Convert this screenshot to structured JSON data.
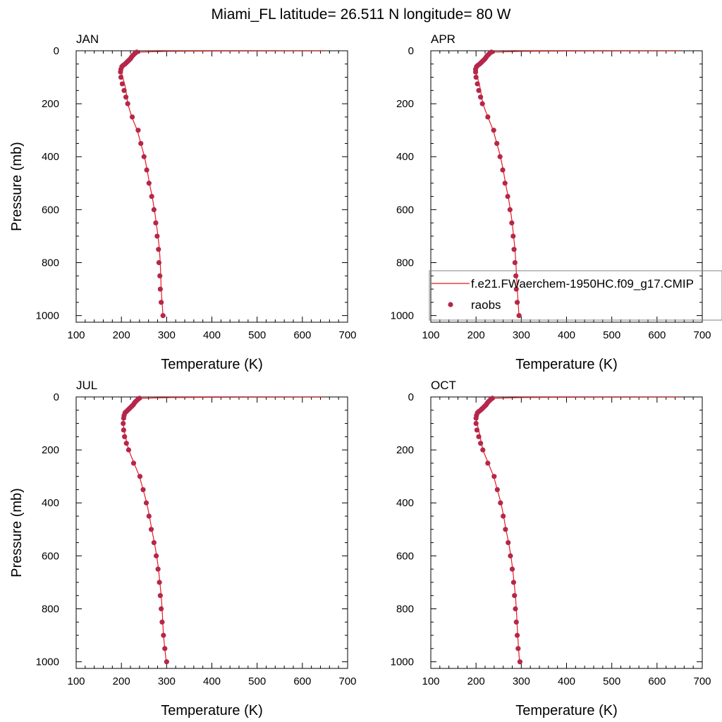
{
  "page": {
    "title": "Miami_FL  latitude= 26.511 N longitude= 80 W"
  },
  "legend": {
    "model_label": "f.e21.FWaerchem-1950HC.f09_g17.CMIP",
    "obs_label": "raobs",
    "placement": "inside APR panel, lower area",
    "model_color": "#e8191e",
    "obs_color": "#b5274a"
  },
  "chart_data": [
    {
      "type": "line",
      "panel_label": "JAN",
      "xlabel": "Temperature (K)",
      "ylabel": "Pressure (mb)",
      "xlim": [
        100,
        700
      ],
      "ylim": [
        1025,
        0
      ],
      "y_reversed": true,
      "xticks": [
        100,
        200,
        300,
        400,
        500,
        600,
        700
      ],
      "yticks": [
        0,
        200,
        400,
        600,
        800,
        1000
      ],
      "series": [
        {
          "name": "f.e21.FWaerchem-1950HC.f09_g17.CMIP",
          "kind": "line",
          "x": [
            650,
            400,
            300,
            240,
            232,
            226,
            222,
            218,
            213,
            208,
            203,
            200,
            200,
            203,
            207,
            210,
            214,
            223,
            235,
            243,
            251,
            257,
            262,
            268,
            273,
            277,
            281,
            284,
            286,
            288,
            292
          ],
          "y": [
            0.5,
            1,
            2,
            5,
            10,
            15,
            20,
            30,
            40,
            50,
            60,
            70,
            80,
            100,
            125,
            150,
            200,
            250,
            300,
            350,
            400,
            450,
            500,
            550,
            600,
            650,
            700,
            750,
            800,
            900,
            1000
          ]
        },
        {
          "name": "raobs",
          "kind": "scatter",
          "x": [
            234,
            230,
            227,
            224,
            222,
            220,
            217,
            214,
            211,
            208,
            204,
            201,
            199,
            198,
            199,
            202,
            206,
            210,
            214,
            224,
            237,
            243,
            250,
            256,
            261,
            267,
            272,
            276,
            279,
            282,
            283,
            285,
            286,
            288,
            292
          ],
          "y": [
            5,
            10,
            15,
            20,
            25,
            30,
            35,
            40,
            45,
            50,
            55,
            60,
            70,
            80,
            100,
            125,
            150,
            175,
            200,
            250,
            300,
            350,
            400,
            450,
            500,
            550,
            600,
            650,
            700,
            750,
            800,
            850,
            900,
            950,
            1000
          ]
        }
      ]
    },
    {
      "type": "line",
      "panel_label": "APR",
      "xlabel": "Temperature (K)",
      "ylabel": "",
      "xlim": [
        100,
        700
      ],
      "ylim": [
        1025,
        0
      ],
      "y_reversed": true,
      "xticks": [
        100,
        200,
        300,
        400,
        500,
        600,
        700
      ],
      "yticks": [
        0,
        200,
        400,
        600,
        800,
        1000
      ],
      "series": [
        {
          "name": "f.e21.FWaerchem-1950HC.f09_g17.CMIP",
          "kind": "line",
          "x": [
            650,
            400,
            300,
            240,
            232,
            226,
            222,
            218,
            213,
            208,
            203,
            200,
            200,
            203,
            207,
            210,
            215,
            226,
            238,
            246,
            254,
            260,
            265,
            271,
            276,
            280,
            283,
            286,
            288,
            291,
            295
          ],
          "y": [
            0.5,
            1,
            2,
            5,
            10,
            15,
            20,
            30,
            40,
            50,
            60,
            70,
            80,
            100,
            125,
            150,
            200,
            250,
            300,
            350,
            400,
            450,
            500,
            550,
            600,
            650,
            700,
            750,
            800,
            900,
            1000
          ]
        },
        {
          "name": "raobs",
          "kind": "scatter",
          "x": [
            234,
            230,
            227,
            224,
            222,
            220,
            217,
            214,
            211,
            208,
            204,
            201,
            199,
            199,
            200,
            203,
            206,
            210,
            214,
            226,
            239,
            246,
            253,
            259,
            264,
            270,
            275,
            279,
            282,
            284,
            286,
            288,
            289,
            291,
            295
          ],
          "y": [
            5,
            10,
            15,
            20,
            25,
            30,
            35,
            40,
            45,
            50,
            55,
            60,
            70,
            80,
            100,
            125,
            150,
            175,
            200,
            250,
            300,
            350,
            400,
            450,
            500,
            550,
            600,
            650,
            700,
            750,
            800,
            850,
            900,
            950,
            1000
          ]
        }
      ]
    },
    {
      "type": "line",
      "panel_label": "JUL",
      "xlabel": "Temperature (K)",
      "ylabel": "Pressure (mb)",
      "xlim": [
        100,
        700
      ],
      "ylim": [
        1025,
        0
      ],
      "y_reversed": true,
      "xticks": [
        100,
        200,
        300,
        400,
        500,
        600,
        700
      ],
      "yticks": [
        0,
        200,
        400,
        600,
        800,
        1000
      ],
      "series": [
        {
          "name": "f.e21.FWaerchem-1950HC.f09_g17.CMIP",
          "kind": "line",
          "x": [
            650,
            420,
            310,
            242,
            235,
            230,
            226,
            222,
            218,
            214,
            210,
            207,
            205,
            204,
            206,
            209,
            216,
            228,
            240,
            248,
            256,
            262,
            267,
            273,
            278,
            282,
            285,
            288,
            290,
            293,
            299
          ],
          "y": [
            0.5,
            1,
            2,
            5,
            10,
            15,
            20,
            30,
            40,
            50,
            60,
            70,
            80,
            100,
            125,
            150,
            200,
            250,
            300,
            350,
            400,
            450,
            500,
            550,
            600,
            650,
            700,
            750,
            800,
            900,
            1000
          ]
        },
        {
          "name": "raobs",
          "kind": "scatter",
          "x": [
            240,
            236,
            233,
            230,
            228,
            226,
            223,
            220,
            217,
            214,
            211,
            208,
            206,
            205,
            204,
            205,
            207,
            211,
            216,
            227,
            241,
            248,
            255,
            261,
            266,
            272,
            277,
            281,
            284,
            286,
            288,
            290,
            293,
            296,
            300
          ],
          "y": [
            5,
            10,
            15,
            20,
            25,
            30,
            35,
            40,
            45,
            50,
            55,
            60,
            70,
            80,
            100,
            125,
            150,
            175,
            200,
            250,
            300,
            350,
            400,
            450,
            500,
            550,
            600,
            650,
            700,
            750,
            800,
            850,
            900,
            950,
            1000
          ]
        }
      ]
    },
    {
      "type": "line",
      "panel_label": "OCT",
      "xlabel": "Temperature (K)",
      "ylabel": "",
      "xlim": [
        100,
        700
      ],
      "ylim": [
        1025,
        0
      ],
      "y_reversed": true,
      "xticks": [
        100,
        200,
        300,
        400,
        500,
        600,
        700
      ],
      "yticks": [
        0,
        200,
        400,
        600,
        800,
        1000
      ],
      "series": [
        {
          "name": "f.e21.FWaerchem-1950HC.f09_g17.CMIP",
          "kind": "line",
          "x": [
            650,
            400,
            300,
            238,
            232,
            227,
            223,
            219,
            214,
            209,
            204,
            201,
            200,
            202,
            206,
            209,
            215,
            227,
            239,
            247,
            255,
            261,
            266,
            272,
            277,
            281,
            284,
            287,
            289,
            292,
            296
          ],
          "y": [
            0.5,
            1,
            2,
            5,
            10,
            15,
            20,
            30,
            40,
            50,
            60,
            70,
            80,
            100,
            125,
            150,
            200,
            250,
            300,
            350,
            400,
            450,
            500,
            550,
            600,
            650,
            700,
            750,
            800,
            900,
            1000
          ]
        },
        {
          "name": "raobs",
          "kind": "scatter",
          "x": [
            236,
            232,
            229,
            226,
            224,
            222,
            219,
            216,
            213,
            210,
            206,
            203,
            201,
            200,
            200,
            202,
            206,
            210,
            215,
            226,
            240,
            247,
            254,
            260,
            265,
            271,
            276,
            280,
            283,
            285,
            287,
            289,
            291,
            293,
            297
          ],
          "y": [
            5,
            10,
            15,
            20,
            25,
            30,
            35,
            40,
            45,
            50,
            55,
            60,
            70,
            80,
            100,
            125,
            150,
            175,
            200,
            250,
            300,
            350,
            400,
            450,
            500,
            550,
            600,
            650,
            700,
            750,
            800,
            850,
            900,
            950,
            1000
          ]
        }
      ]
    }
  ]
}
